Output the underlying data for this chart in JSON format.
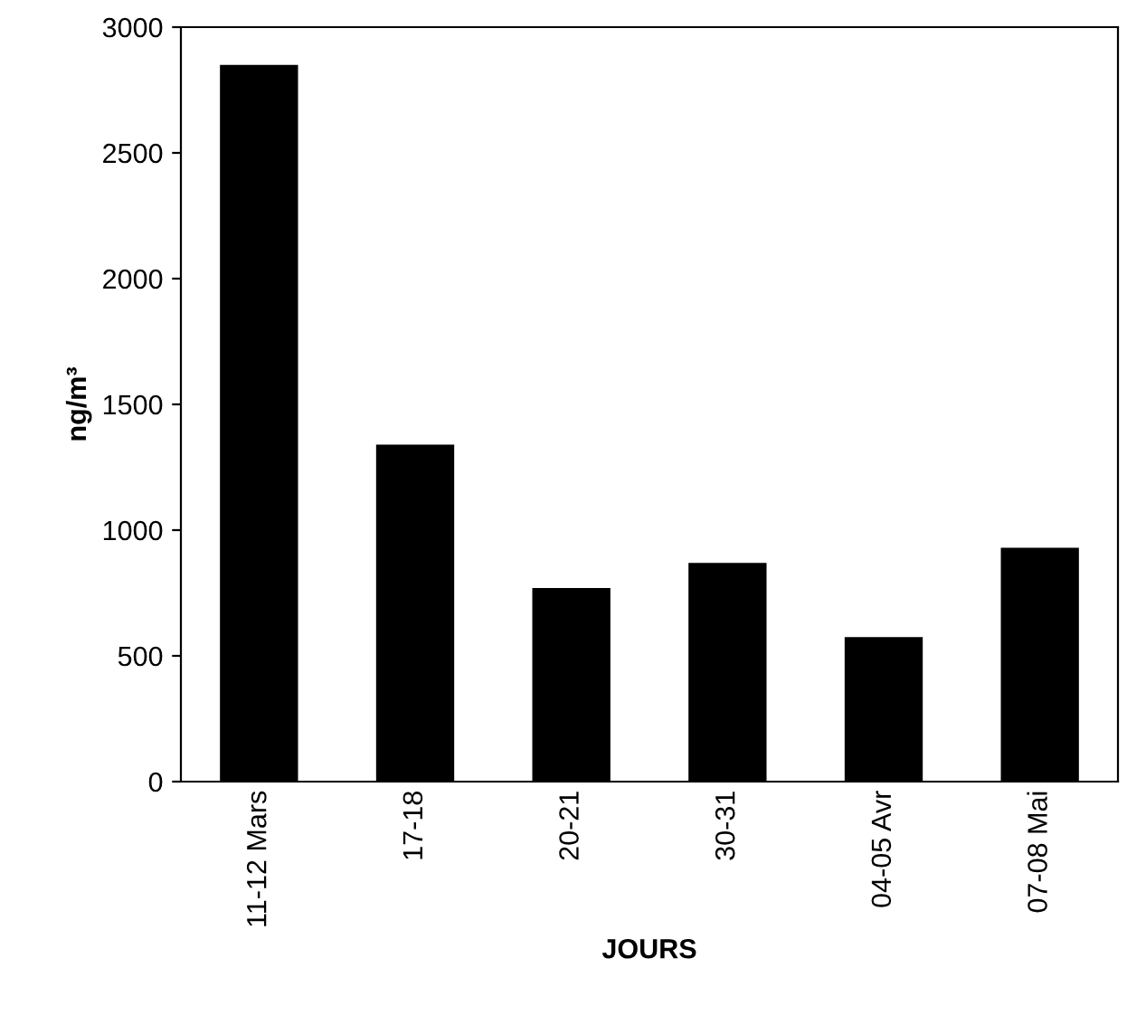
{
  "chart_data": {
    "type": "bar",
    "xlabel": "JOURS",
    "ylabel": "ng/m³",
    "categories": [
      "11-12 Mars",
      "17-18",
      "20-21",
      "30-31",
      "04-05 Avr",
      "07-08 Mai"
    ],
    "values": [
      2850,
      1340,
      770,
      870,
      575,
      930
    ],
    "color": "#000000",
    "ylim": [
      0,
      3000
    ],
    "yticks": [
      0,
      500,
      1000,
      1500,
      2000,
      2500,
      3000
    ],
    "grid": false,
    "legend": false
  }
}
